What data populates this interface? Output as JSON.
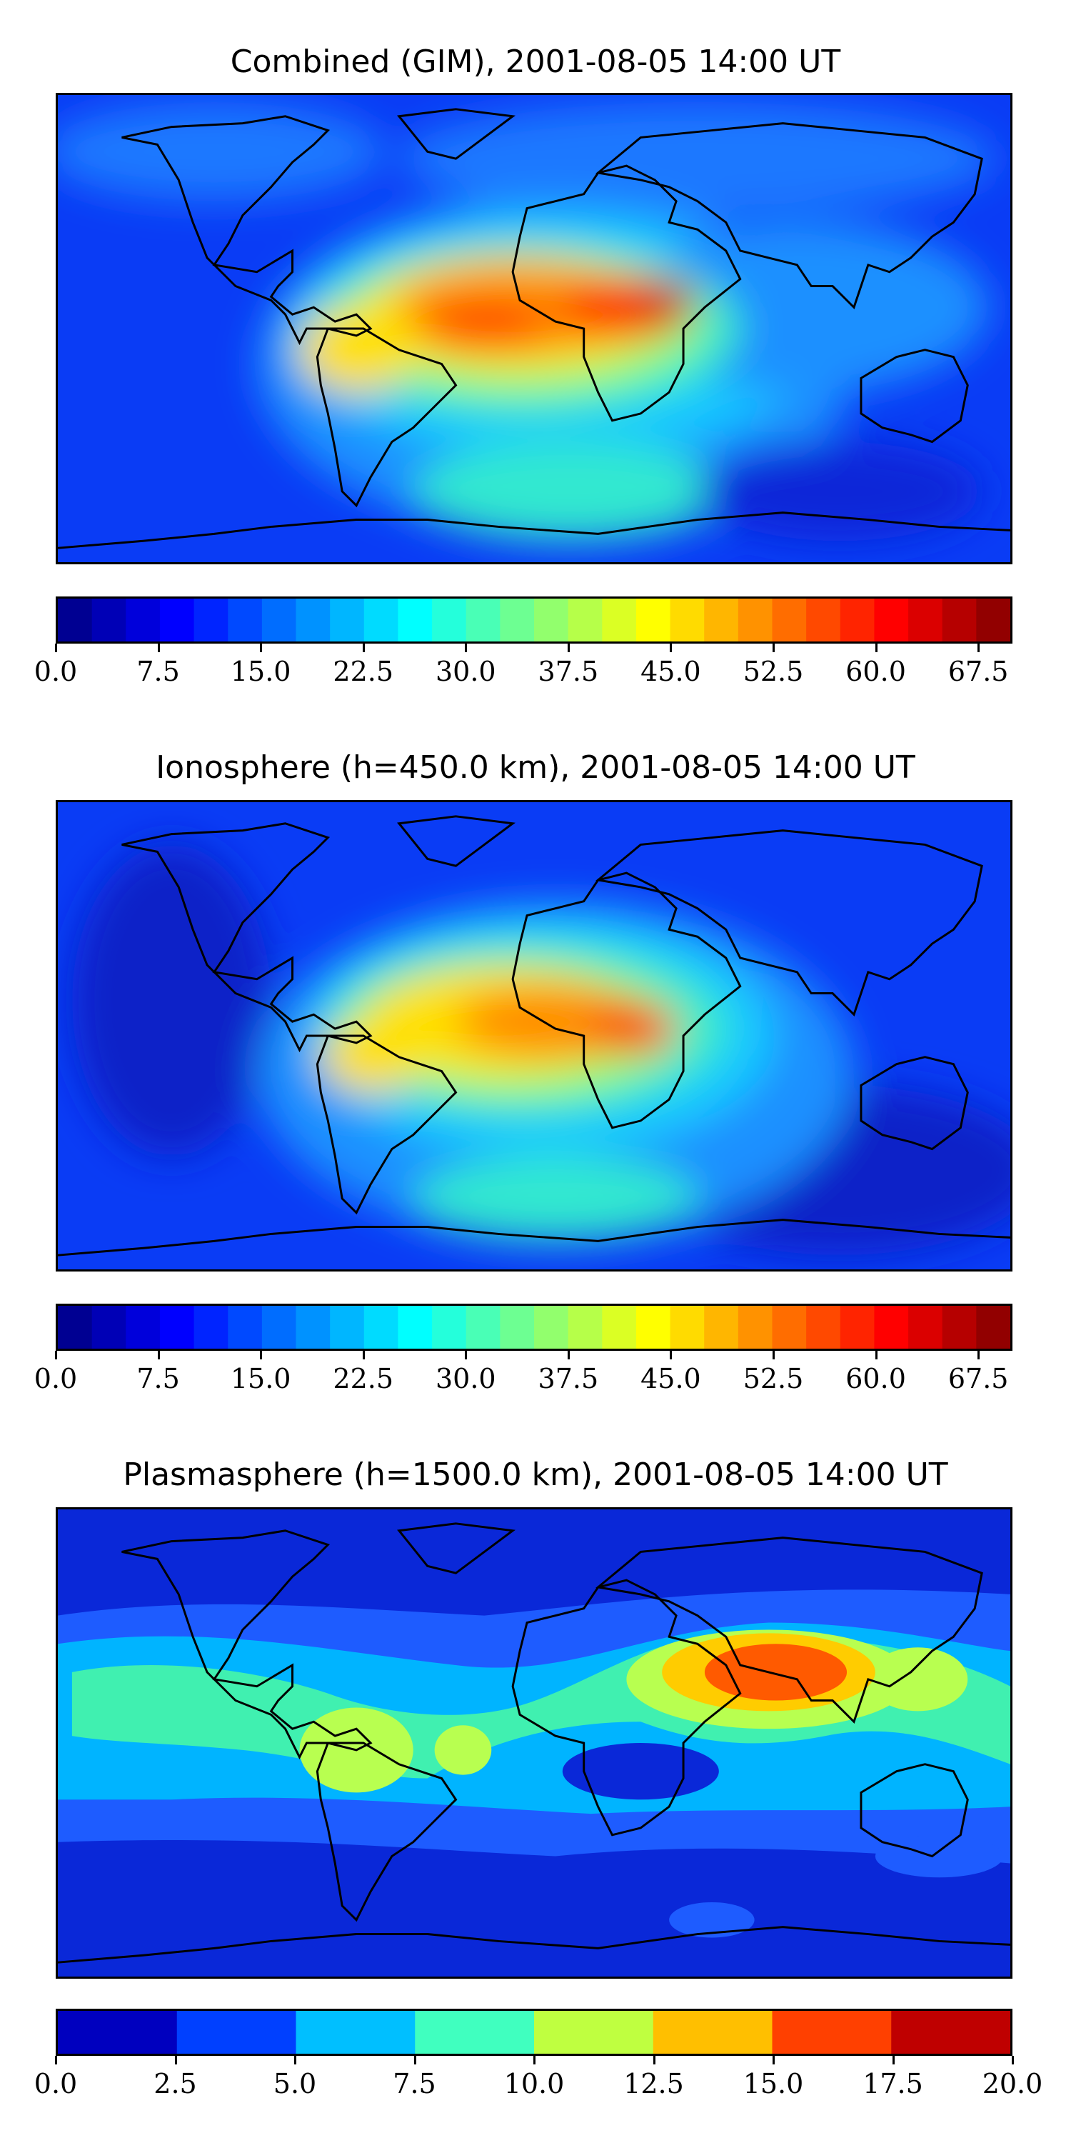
{
  "panels": [
    {
      "title": "Combined (GIM), 2001-08-05 14:00 UT",
      "colorbar": {
        "min": 0.0,
        "max": 70.0,
        "levels": 28,
        "tick_labels": [
          "0.0",
          "7.5",
          "15.0",
          "22.5",
          "30.0",
          "37.5",
          "45.0",
          "52.5",
          "60.0",
          "67.5"
        ],
        "tick_values": [
          0.0,
          7.5,
          15.0,
          22.5,
          30.0,
          37.5,
          45.0,
          52.5,
          60.0,
          67.5
        ]
      }
    },
    {
      "title": "Ionosphere  (h=450.0 km), 2001-08-05 14:00 UT",
      "colorbar": {
        "min": 0.0,
        "max": 70.0,
        "levels": 28,
        "tick_labels": [
          "0.0",
          "7.5",
          "15.0",
          "22.5",
          "30.0",
          "37.5",
          "45.0",
          "52.5",
          "60.0",
          "67.5"
        ],
        "tick_values": [
          0.0,
          7.5,
          15.0,
          22.5,
          30.0,
          37.5,
          45.0,
          52.5,
          60.0,
          67.5
        ]
      }
    },
    {
      "title": "Plasmasphere (h=1500.0 km), 2001-08-05 14:00 UT",
      "colorbar": {
        "min": 0.0,
        "max": 20.0,
        "levels": 8,
        "tick_labels": [
          "0.0",
          "2.5",
          "5.0",
          "7.5",
          "10.0",
          "12.5",
          "15.0",
          "17.5",
          "20.0"
        ],
        "tick_values": [
          0.0,
          2.5,
          5.0,
          7.5,
          10.0,
          12.5,
          15.0,
          17.5,
          20.0
        ]
      }
    }
  ],
  "colormap": "jet",
  "coastline_color": "#000000"
}
